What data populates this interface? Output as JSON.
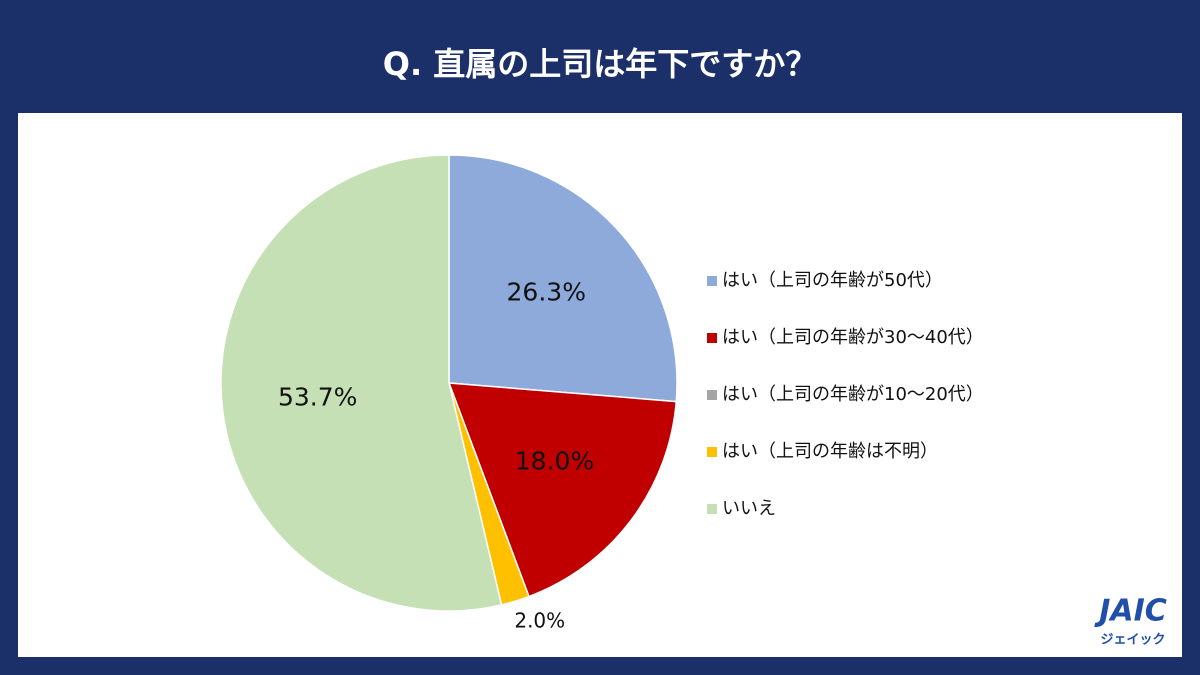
{
  "chart_data": {
    "type": "pie",
    "title": "Q. 直属の上司は年下ですか？",
    "categories": [
      "はい（上司の年齢が50代）",
      "はい（上司の年齢が30～40代）",
      "はい（上司の年齢が10～20代）",
      "はい（上司の年齢は不明）",
      "いいえ"
    ],
    "values": [
      26.3,
      18.0,
      0,
      2.0,
      53.7
    ],
    "value_labels": [
      "26.3%",
      "18.0%",
      null,
      "2.0%",
      "53.7%"
    ],
    "colors": [
      "#8eaadb",
      "#c00000",
      "#a5a5a5",
      "#ffc000",
      "#c5e0b4"
    ],
    "legend": "right"
  },
  "logo": {
    "text": "JAIC",
    "sub": "ジェイック"
  }
}
